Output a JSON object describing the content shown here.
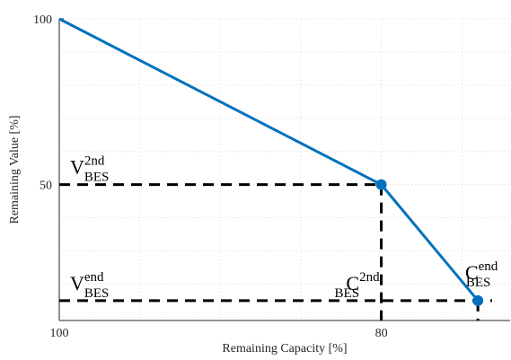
{
  "chart_data": {
    "type": "line",
    "x_label": "Remaining Capacity [%]",
    "y_label": "Remaining Value [%]",
    "x": [
      100,
      80,
      74
    ],
    "series": [
      {
        "color": "#0072bd",
        "values": [
          100,
          50,
          15
        ]
      }
    ],
    "xlim": [
      100,
      72
    ],
    "ylim": [
      9,
      100
    ],
    "xticks": [
      100,
      80
    ],
    "yticks": [
      50,
      100
    ],
    "x_minor_grid": [
      95,
      90,
      85,
      75
    ],
    "y_minor_grid": [
      90,
      80,
      70,
      60,
      40,
      30,
      20,
      10
    ],
    "grid": true,
    "annotations": [
      {
        "main": "V",
        "sup": "2nd",
        "sub": "BES"
      },
      {
        "main": "V",
        "sup": "end",
        "sub": "BES"
      },
      {
        "main": "C",
        "sup": "2nd",
        "sub": "BES"
      },
      {
        "main": "C",
        "sup": "end",
        "sub": "BES"
      }
    ]
  }
}
